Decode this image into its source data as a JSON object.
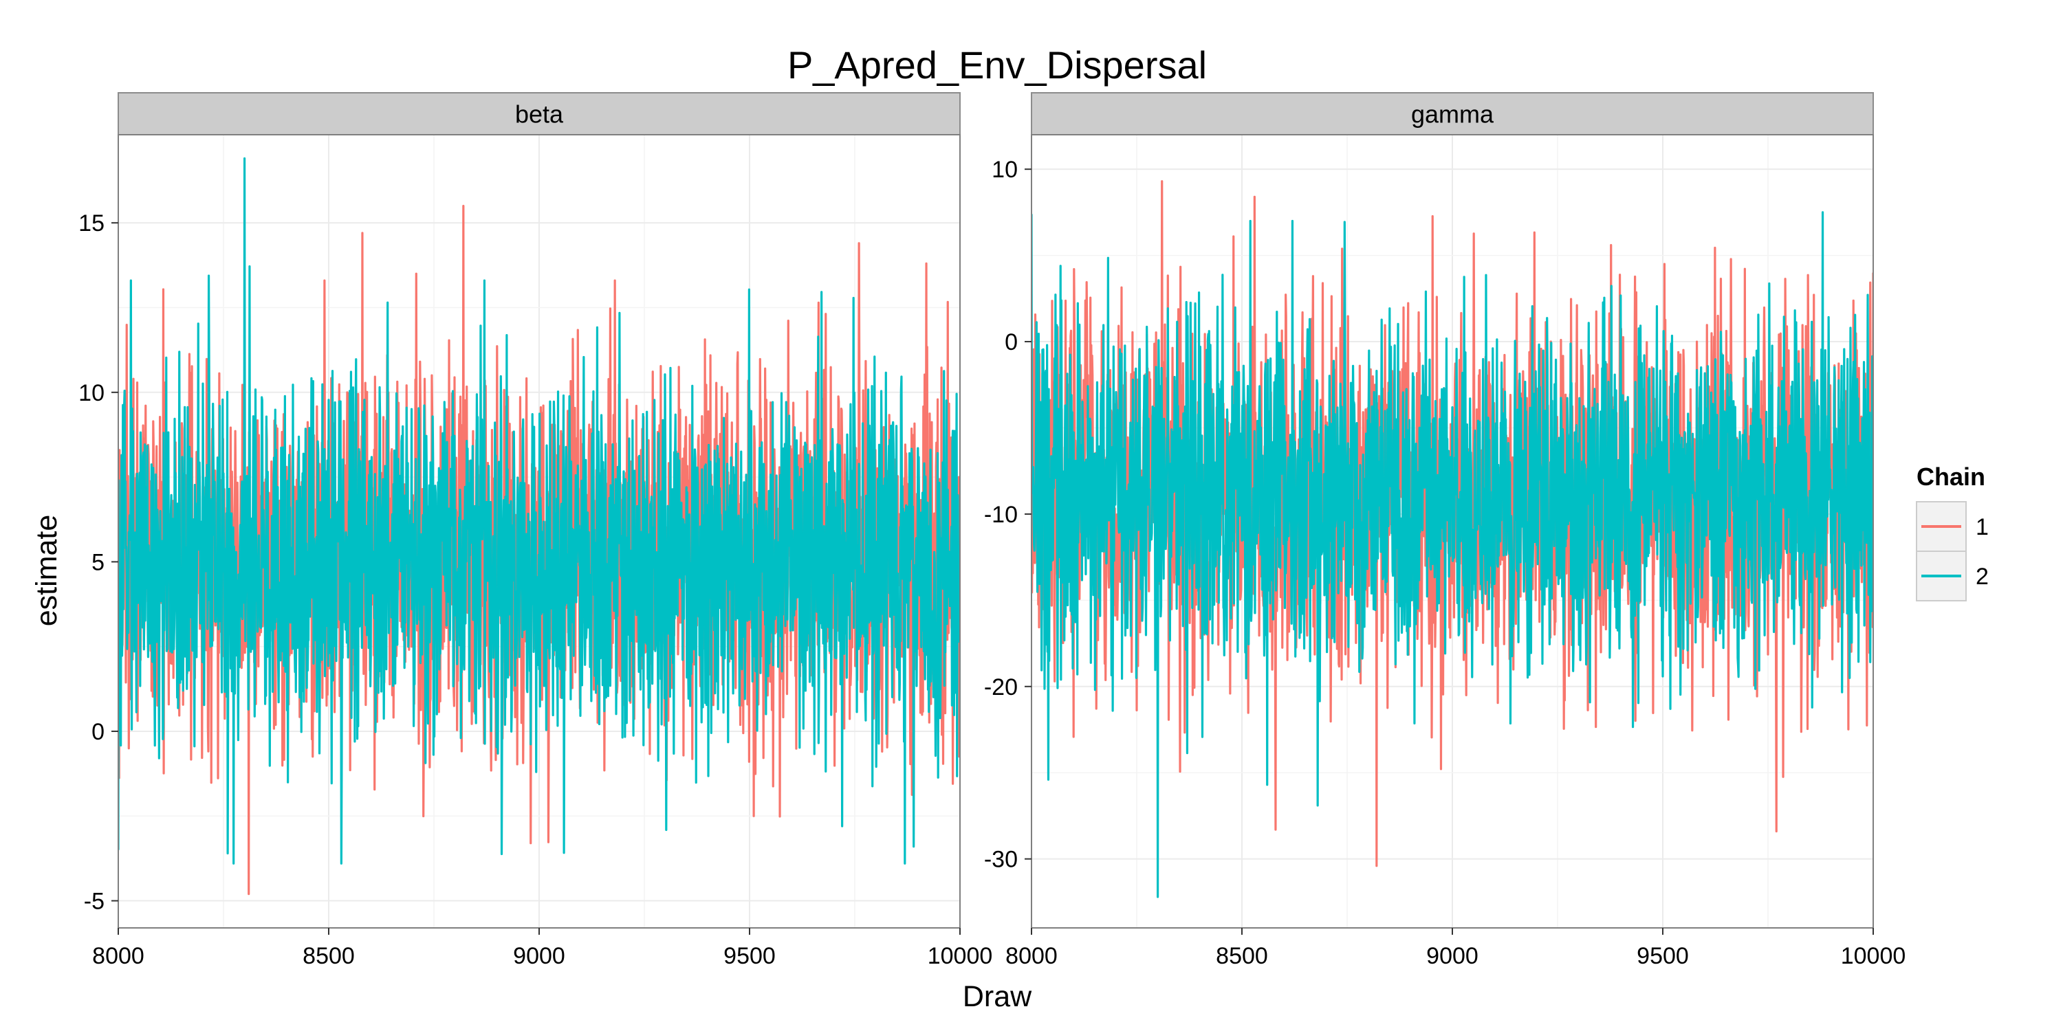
{
  "chart_data": {
    "type": "line",
    "title": "P_Apred_Env_Dispersal",
    "xlabel": "Draw",
    "ylabel": "estimate",
    "legend": {
      "title": "Chain",
      "position": "right",
      "entries": [
        "1",
        "2"
      ]
    },
    "series_colors": {
      "1": "#F8766D",
      "2": "#00BFC4"
    },
    "grid": true,
    "x_range": [
      8000,
      10000
    ],
    "x_ticks": [
      8000,
      8500,
      9000,
      9500,
      10000
    ],
    "panels": [
      {
        "strip": "beta",
        "ylim": [
          -5.8,
          17.6
        ],
        "y_ticks": [
          -5,
          0,
          5,
          10,
          15
        ],
        "series": [
          {
            "name": "1",
            "summary": {
              "mean": 5.2,
              "sd": 2.6,
              "min": -4.8,
              "max": 15.5
            },
            "extremes": [
              {
                "x": 8310,
                "y": -4.8
              },
              {
                "x": 8820,
                "y": 15.5
              },
              {
                "x": 8580,
                "y": 14.7
              },
              {
                "x": 9760,
                "y": 14.4
              },
              {
                "x": 9920,
                "y": 13.8
              },
              {
                "x": 8490,
                "y": 13.3
              },
              {
                "x": 9180,
                "y": 13.3
              },
              {
                "x": 8980,
                "y": -3.3
              },
              {
                "x": 9510,
                "y": -2.5
              }
            ]
          },
          {
            "name": "2",
            "summary": {
              "mean": 5.0,
              "sd": 2.5,
              "min": -3.9,
              "max": 16.9
            },
            "extremes": [
              {
                "x": 8300,
                "y": 16.9
              },
              {
                "x": 8030,
                "y": 13.3
              },
              {
                "x": 8870,
                "y": 13.3
              },
              {
                "x": 8000,
                "y": -3.5
              },
              {
                "x": 8260,
                "y": -3.6
              },
              {
                "x": 8530,
                "y": -3.9
              },
              {
                "x": 9890,
                "y": -3.4
              },
              {
                "x": 9720,
                "y": -2.8
              }
            ]
          }
        ]
      },
      {
        "strip": "gamma",
        "ylim": [
          -34,
          12
        ],
        "y_ticks": [
          -30,
          -20,
          -10,
          0,
          10
        ],
        "series": [
          {
            "name": "1",
            "summary": {
              "mean": -9.0,
              "sd": 5.0,
              "min": -30.4,
              "max": 9.3
            },
            "extremes": [
              {
                "x": 8310,
                "y": 9.3
              },
              {
                "x": 8530,
                "y": 8.4
              },
              {
                "x": 8820,
                "y": -30.4
              },
              {
                "x": 9770,
                "y": -28.4
              },
              {
                "x": 8580,
                "y": -28.3
              },
              {
                "x": 8480,
                "y": 6.1
              }
            ]
          },
          {
            "name": "2",
            "summary": {
              "mean": -9.0,
              "sd": 4.8,
              "min": -32.2,
              "max": 7.5
            },
            "extremes": [
              {
                "x": 8300,
                "y": -32.2
              },
              {
                "x": 8000,
                "y": 7.4
              },
              {
                "x": 9880,
                "y": 7.5
              },
              {
                "x": 8520,
                "y": 7.0
              },
              {
                "x": 8620,
                "y": 7.0
              },
              {
                "x": 8560,
                "y": -25.7
              },
              {
                "x": 8040,
                "y": -25.4
              },
              {
                "x": 8680,
                "y": -26.9
              }
            ]
          }
        ]
      }
    ]
  }
}
